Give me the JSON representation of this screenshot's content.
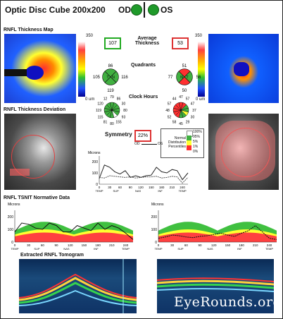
{
  "title": "Optic Disc Cube 200x200",
  "eyes": {
    "od": "OD",
    "os": "OS"
  },
  "sections": {
    "thickness_map": "RNFL Thickness Map",
    "deviation": "RNFL Thickness Deviation",
    "tsnit": "RNFL TSNIT Normative Data",
    "tomogram": "Extracted RNFL Tomogram"
  },
  "scale": {
    "max": "350",
    "min": "0 um"
  },
  "average_thickness": {
    "label": "Average Thickness",
    "od": "107",
    "os": "53",
    "od_color": "#22aa22",
    "os_color": "#dd3333"
  },
  "quadrants": {
    "label": "Quadrants",
    "od": {
      "s": "86",
      "t": "105",
      "n": "116",
      "i": "119",
      "center_t": "T",
      "center_n": "N"
    },
    "os": {
      "s": "51",
      "t": "77",
      "n": "56",
      "i": "50",
      "center_t": "N",
      "center_n": "T"
    }
  },
  "clock_hours": {
    "label": "Clock Hours",
    "od": [
      "79",
      "86",
      "30",
      "80",
      "93",
      "155",
      "80",
      "81",
      "115",
      "119",
      "120",
      "12"
    ],
    "os": [
      "47",
      "57",
      "47",
      "37",
      "30",
      "29",
      "45",
      "58",
      "52",
      "48",
      "57",
      "44"
    ],
    "od_extra": [
      "20",
      "80"
    ],
    "os_extra": [
      "66",
      "40"
    ]
  },
  "symmetry": {
    "label": "Symmetry",
    "value": "22%"
  },
  "legend": {
    "pcts": [
      "100%",
      "95%",
      "5%",
      "1%",
      "0%"
    ],
    "title": "Normal Distribution Percentiles",
    "od": "OD",
    "os": "OS"
  },
  "microns": "Microns",
  "tsnit_axis": {
    "y": [
      "200",
      "100",
      "0"
    ],
    "y_full": [
      "200",
      "100",
      "0"
    ],
    "x": [
      "0",
      "30",
      "60",
      "90",
      "120",
      "150",
      "180",
      "210",
      "240"
    ],
    "sectors": [
      "TEMP",
      "SUP",
      "NAS",
      "INF",
      "TEMP"
    ]
  },
  "chart_data": [
    {
      "type": "line",
      "title": "",
      "xlabel": "",
      "ylabel": "Microns",
      "ylim": [
        0,
        250
      ],
      "x": [
        0,
        15,
        30,
        45,
        60,
        75,
        90,
        105,
        120,
        135,
        150,
        165,
        180,
        195,
        210,
        225,
        240,
        256
      ],
      "series": [
        {
          "name": "OD",
          "values": [
            50,
            170,
            150,
            110,
            90,
            120,
            60,
            75,
            60,
            75,
            80,
            150,
            110,
            100,
            130,
            120,
            40,
            100
          ]
        },
        {
          "name": "OS",
          "values": [
            60,
            55,
            75,
            70,
            65,
            60,
            65,
            55,
            60,
            65,
            65,
            70,
            55,
            60,
            70,
            65,
            10,
            60
          ]
        }
      ]
    },
    {
      "type": "line",
      "title": "",
      "xlabel": "",
      "ylabel": "Microns",
      "ylim": [
        0,
        250
      ],
      "x": [
        0,
        15,
        30,
        45,
        60,
        75,
        90,
        105,
        120,
        135,
        150,
        165,
        180,
        195,
        210,
        225,
        240,
        256
      ],
      "series": [
        {
          "name": "OD",
          "values": [
            80,
            150,
            140,
            110,
            100,
            150,
            130,
            80,
            80,
            130,
            110,
            90,
            150,
            100,
            130,
            110,
            70,
            20
          ]
        }
      ]
    },
    {
      "type": "line",
      "title": "",
      "xlabel": "",
      "ylabel": "Microns",
      "ylim": [
        0,
        250
      ],
      "x": [
        0,
        15,
        30,
        45,
        60,
        75,
        90,
        105,
        120,
        135,
        150,
        165,
        180,
        195,
        210,
        225,
        240,
        256
      ],
      "series": [
        {
          "name": "OS",
          "values": [
            30,
            40,
            55,
            50,
            40,
            35,
            45,
            50,
            60,
            70,
            55,
            45,
            70,
            90,
            130,
            80,
            30,
            20
          ]
        }
      ]
    }
  ],
  "watermark": "EyeRounds.org"
}
